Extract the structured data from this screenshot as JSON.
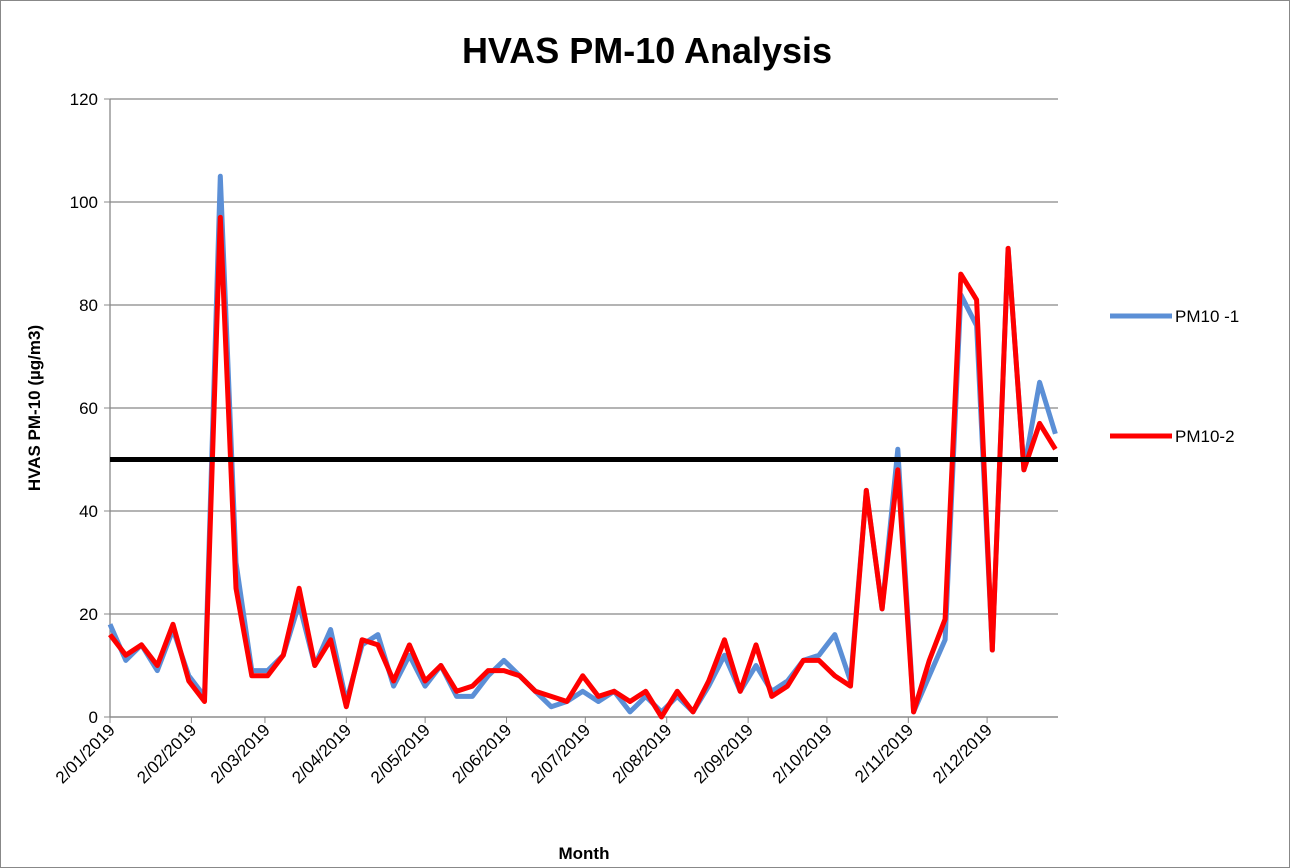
{
  "chart_data": {
    "type": "line",
    "title": "HVAS PM-10 Analysis",
    "x_label": "Month",
    "y_label": "HVAS PM-10 (µg/m3)",
    "x": [
      "2019-01-02",
      "2019-01-08",
      "2019-01-14",
      "2019-01-20",
      "2019-01-26",
      "2019-02-01",
      "2019-02-07",
      "2019-02-13",
      "2019-02-19",
      "2019-02-25",
      "2019-03-03",
      "2019-03-09",
      "2019-03-15",
      "2019-03-21",
      "2019-03-27",
      "2019-04-02",
      "2019-04-08",
      "2019-04-14",
      "2019-04-20",
      "2019-04-26",
      "2019-05-02",
      "2019-05-08",
      "2019-05-14",
      "2019-05-20",
      "2019-05-26",
      "2019-06-01",
      "2019-06-07",
      "2019-06-13",
      "2019-06-19",
      "2019-06-25",
      "2019-07-01",
      "2019-07-07",
      "2019-07-13",
      "2019-07-19",
      "2019-07-25",
      "2019-07-31",
      "2019-08-06",
      "2019-08-12",
      "2019-08-18",
      "2019-08-24",
      "2019-08-30",
      "2019-09-05",
      "2019-09-11",
      "2019-09-17",
      "2019-09-23",
      "2019-09-29",
      "2019-10-05",
      "2019-10-11",
      "2019-10-17",
      "2019-10-23",
      "2019-10-29",
      "2019-11-04",
      "2019-11-10",
      "2019-11-16",
      "2019-11-22",
      "2019-11-28",
      "2019-12-04",
      "2019-12-10",
      "2019-12-16",
      "2019-12-22",
      "2019-12-28"
    ],
    "series": [
      {
        "name": "PM10 -1",
        "color": "#5b8fd6",
        "values": [
          18,
          11,
          14,
          9,
          17,
          8,
          4,
          105,
          30,
          9,
          9,
          12,
          22,
          10,
          17,
          3,
          14,
          16,
          6,
          12,
          6,
          10,
          4,
          4,
          8,
          11,
          8,
          5,
          2,
          3,
          5,
          3,
          5,
          1,
          4,
          1,
          4,
          1,
          6,
          12,
          5,
          10,
          5,
          7,
          11,
          12,
          16,
          7,
          44,
          21,
          52,
          1,
          8,
          15,
          82,
          76,
          13,
          91,
          48,
          65,
          55
        ]
      },
      {
        "name": "PM10-2",
        "color": "#ff0000",
        "values": [
          16,
          12,
          14,
          10,
          18,
          7,
          3,
          97,
          25,
          8,
          8,
          12,
          25,
          10,
          15,
          2,
          15,
          14,
          7,
          14,
          7,
          10,
          5,
          6,
          9,
          9,
          8,
          5,
          4,
          3,
          8,
          4,
          5,
          3,
          5,
          0,
          5,
          1,
          7,
          15,
          5,
          14,
          4,
          6,
          11,
          11,
          8,
          6,
          44,
          21,
          48,
          1,
          11,
          19,
          86,
          81,
          13,
          91,
          48,
          57,
          52
        ]
      }
    ],
    "reference_line": {
      "value": 50,
      "color": "#000000"
    },
    "xlim": [
      "2019-01-02",
      "2019-12-29"
    ],
    "xticks": [
      {
        "value": "2019-01-02",
        "label": "2/01/2019"
      },
      {
        "value": "2019-02-02",
        "label": "2/02/2019"
      },
      {
        "value": "2019-03-02",
        "label": "2/03/2019"
      },
      {
        "value": "2019-04-02",
        "label": "2/04/2019"
      },
      {
        "value": "2019-05-02",
        "label": "2/05/2019"
      },
      {
        "value": "2019-06-02",
        "label": "2/06/2019"
      },
      {
        "value": "2019-07-02",
        "label": "2/07/2019"
      },
      {
        "value": "2019-08-02",
        "label": "2/08/2019"
      },
      {
        "value": "2019-09-02",
        "label": "2/09/2019"
      },
      {
        "value": "2019-10-02",
        "label": "2/10/2019"
      },
      {
        "value": "2019-11-02",
        "label": "2/11/2019"
      },
      {
        "value": "2019-12-02",
        "label": "2/12/2019"
      }
    ],
    "ylim": [
      0,
      120
    ],
    "yticks": [
      0,
      20,
      40,
      60,
      80,
      100,
      120
    ],
    "grid": true,
    "legend": "right"
  }
}
